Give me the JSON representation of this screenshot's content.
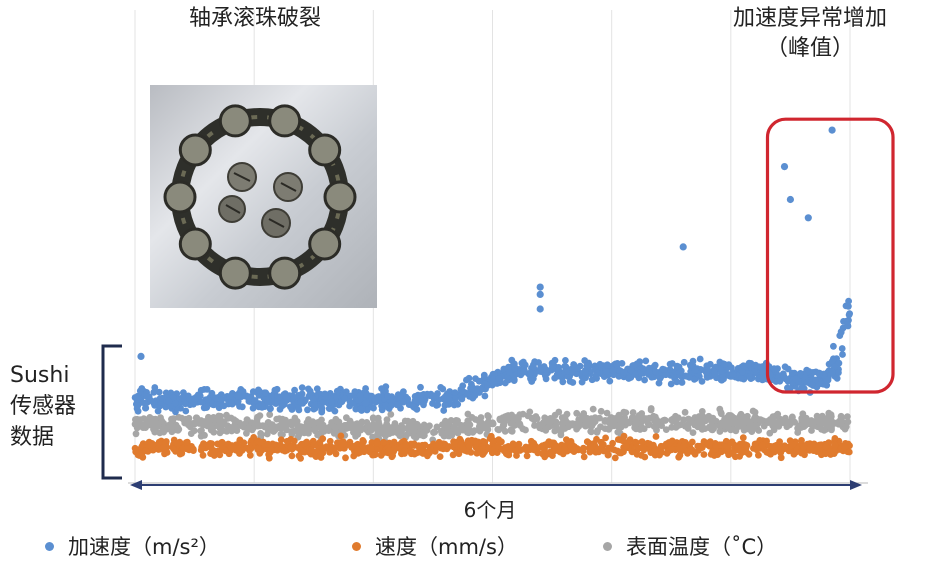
{
  "annotations": {
    "left": "轴承滚珠破裂",
    "right_line1": "加速度异常增加",
    "right_line2": "（峰值）"
  },
  "y_label_lines": [
    "Sushi",
    "传感器",
    "数据"
  ],
  "duration_label": "6个月",
  "legend": [
    {
      "label": "加速度（m/s²）",
      "color": "#5b8fd1"
    },
    {
      "label": "速度（mm/s）",
      "color": "#e07b2e"
    },
    {
      "label": "表面温度（˚C）",
      "color": "#a6a6a6"
    }
  ],
  "colors": {
    "highlight_box": "#d0262f",
    "arrow": "#2d3e73",
    "bracket": "#1f2b4d"
  },
  "chart_data": {
    "type": "scatter",
    "title": "",
    "xlabel": "6个月",
    "ylabel": "Sushi 传感器 数据",
    "grid": true,
    "legend_position": "bottom",
    "xlim": [
      0,
      6
    ],
    "ylim": [
      0,
      10
    ],
    "series": [
      {
        "name": "加速度（m/s²）",
        "trend": [
          [
            0,
            1.5
          ],
          [
            2.6,
            1.5
          ],
          [
            3.2,
            2.3
          ],
          [
            5.3,
            2.3
          ],
          [
            5.55,
            2.05
          ],
          [
            5.8,
            2.1
          ],
          [
            5.9,
            2.5
          ],
          [
            6.0,
            4.2
          ]
        ],
        "outliers": [
          [
            0.05,
            2.7
          ],
          [
            3.4,
            4.6
          ],
          [
            3.4,
            4.4
          ],
          [
            3.4,
            4.0
          ],
          [
            4.6,
            5.7
          ],
          [
            5.45,
            7.9
          ],
          [
            5.5,
            7.0
          ],
          [
            5.65,
            6.5
          ],
          [
            5.85,
            8.9
          ]
        ]
      },
      {
        "name": "速度（mm/s）",
        "trend": [
          [
            0,
            0.2
          ],
          [
            6.0,
            0.2
          ]
        ],
        "outliers": []
      },
      {
        "name": "表面温度（˚C）",
        "trend": [
          [
            0,
            0.85
          ],
          [
            2.5,
            0.7
          ],
          [
            3.1,
            0.9
          ],
          [
            6.0,
            0.9
          ]
        ],
        "outliers": []
      }
    ],
    "highlight_region": {
      "x": [
        5.35,
        6.0
      ],
      "y": [
        2.0,
        9.2
      ],
      "label": "加速度异常增加（峰值）"
    }
  }
}
